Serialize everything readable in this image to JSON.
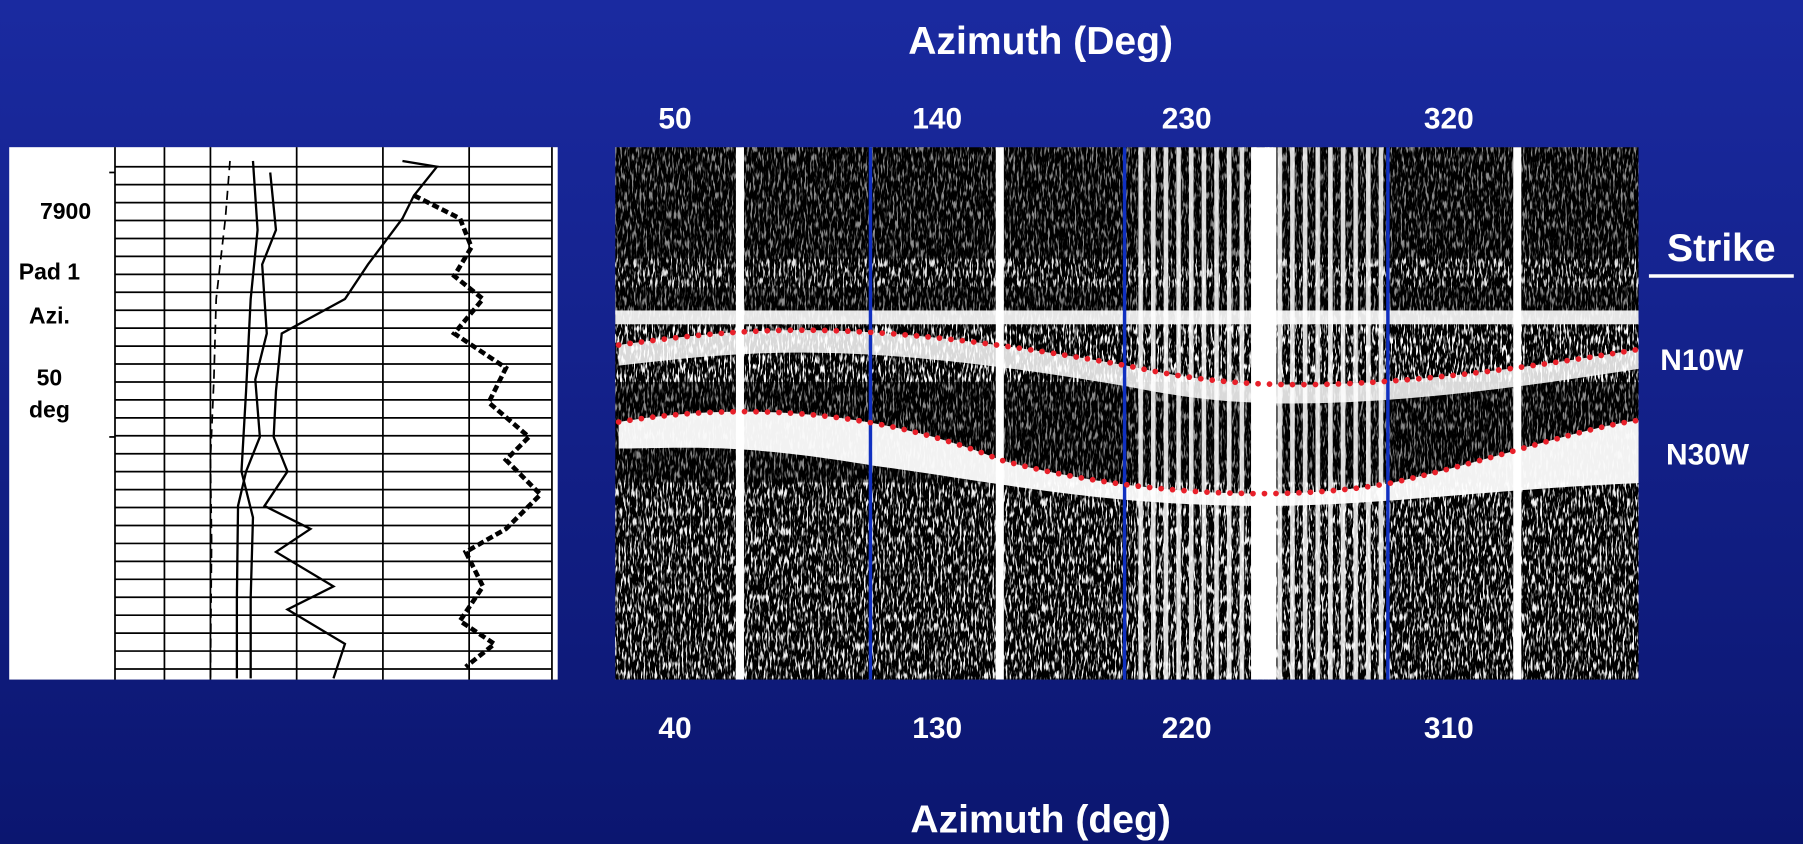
{
  "top_axis": {
    "title": "Azimuth (Deg)",
    "labels": [
      "50",
      "140",
      "230",
      "320"
    ]
  },
  "bottom_axis": {
    "title": "Azimuth (deg)",
    "labels": [
      "40",
      "130",
      "220",
      "310"
    ]
  },
  "log_labels": {
    "depth": "7900",
    "pad": "Pad 1",
    "azi": "Azi.",
    "angle": "50",
    "unit": "deg"
  },
  "strike": {
    "heading": "Strike",
    "values": [
      "N10W",
      "N30W"
    ]
  }
}
